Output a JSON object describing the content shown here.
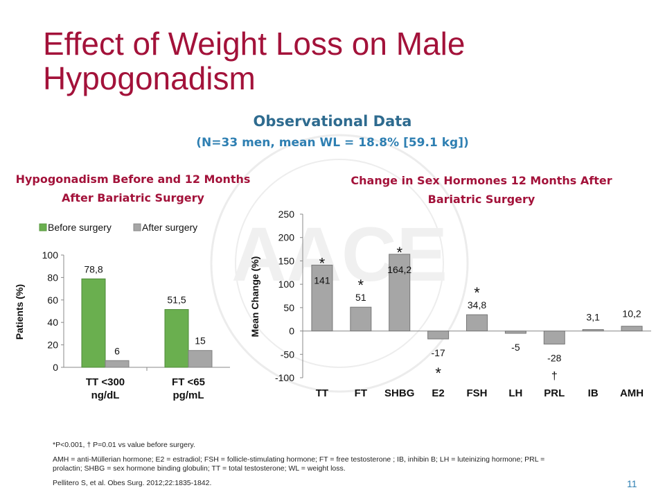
{
  "slide": {
    "title": "Effect of Weight Loss on Male Hypogonadism",
    "subtitle": "Observational Data",
    "subtitle2": "(N=33 men, mean WL = 18.8% [59.1 kg])",
    "page_number": "11",
    "colors": {
      "title": "#a3123a",
      "subtitle": "#2e6b8f",
      "before": "#6aaf4f",
      "after": "#a6a6a6",
      "bar2": "#a6a6a6"
    }
  },
  "footnotes": {
    "line1": "*P<0.001, † P=0.01 vs value before surgery.",
    "line2": "AMH = anti-Müllerian hormone; E2 = estradiol; FSH = follicle-stimulating hormone; FT = free testosterone ; IB, inhibin B; LH = luteinizing hormone; PRL = prolactin; SHBG = sex hormone binding globulin; TT = total testosterone; WL = weight loss.",
    "line3": "Pellitero S, et al. Obes Surg. 2012;22:1835-1842."
  },
  "chart_data": [
    {
      "type": "bar",
      "title": "Hypogonadism Before and 12 Months After Bariatric Surgery",
      "ylabel": "Patients (%)",
      "xlabel": "",
      "ylim": [
        0,
        100
      ],
      "yticks": [
        "100",
        "80",
        "60",
        "40",
        "20",
        "0"
      ],
      "legend_position": "top",
      "categories": [
        "TT <300 ng/dL",
        "FT <65 pg/mL"
      ],
      "category_lines": [
        [
          "TT <300",
          "ng/dL"
        ],
        [
          "FT <65",
          "pg/mL"
        ]
      ],
      "series": [
        {
          "name": "Before surgery",
          "values": [
            78.8,
            51.5
          ],
          "labels": [
            "78,8",
            "51,5"
          ]
        },
        {
          "name": "After surgery",
          "values": [
            6,
            15
          ],
          "labels": [
            "6",
            "15"
          ]
        }
      ]
    },
    {
      "type": "bar",
      "title": "Change in Sex Hormones 12 Months After Bariatric Surgery",
      "ylabel": "Mean Change (%)",
      "xlabel": "",
      "ylim": [
        -100,
        250
      ],
      "yticks": [
        "250",
        "200",
        "150",
        "100",
        "50",
        "0",
        "-50",
        "-100"
      ],
      "categories": [
        "TT",
        "FT",
        "SHBG",
        "E2",
        "FSH",
        "LH",
        "PRL",
        "IB",
        "AMH"
      ],
      "values": [
        141,
        51,
        164.2,
        -17,
        34.8,
        -5,
        -28,
        3.1,
        10.2
      ],
      "labels": [
        "141",
        "51",
        "164,2",
        "-17",
        "34,8",
        "-5",
        "-28",
        "3,1",
        "10,2"
      ],
      "significance": [
        "*",
        "*",
        "*",
        "*",
        "*",
        "",
        "†",
        "",
        ""
      ]
    }
  ]
}
